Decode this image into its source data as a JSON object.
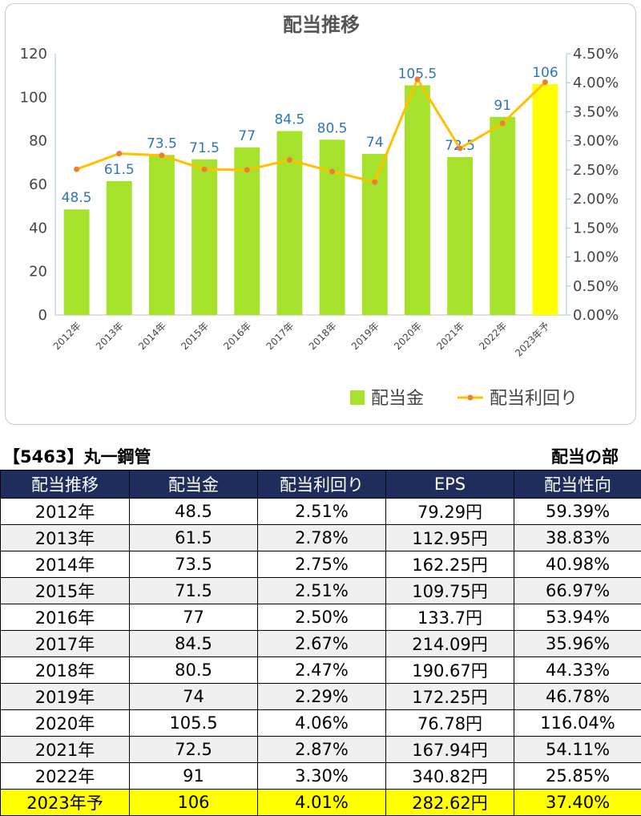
{
  "chart_data": {
    "type": "bar+line",
    "title": "配当推移",
    "categories": [
      "2012年",
      "2013年",
      "2014年",
      "2015年",
      "2016年",
      "2017年",
      "2018年",
      "2019年",
      "2020年",
      "2021年",
      "2022年",
      "2023年予"
    ],
    "series": [
      {
        "name": "配当金",
        "type": "bar",
        "axis": "left",
        "values": [
          48.5,
          61.5,
          73.5,
          71.5,
          77,
          84.5,
          80.5,
          74,
          105.5,
          72.5,
          91,
          106
        ],
        "labels": [
          "48.5",
          "61.5",
          "73.5",
          "71.5",
          "77",
          "84.5",
          "80.5",
          "74",
          "105.5",
          "72.5",
          "91",
          "106"
        ],
        "color": "#a6e22b",
        "highlight_color": "#ffff00"
      },
      {
        "name": "配当利回り",
        "type": "line",
        "axis": "right",
        "values": [
          2.51,
          2.78,
          2.75,
          2.51,
          2.5,
          2.67,
          2.47,
          2.29,
          4.06,
          2.87,
          3.3,
          4.01
        ],
        "color": "#ffc000",
        "marker_color": "#ed7d31"
      }
    ],
    "y_left": {
      "min": 0,
      "max": 120,
      "ticks": [
        "0",
        "20",
        "40",
        "60",
        "80",
        "100",
        "120"
      ]
    },
    "y_right": {
      "min": 0,
      "max": 4.5,
      "ticks": [
        "0.00%",
        "0.50%",
        "1.00%",
        "1.50%",
        "2.00%",
        "2.50%",
        "3.00%",
        "3.50%",
        "4.00%",
        "4.50%"
      ]
    },
    "legend_position": "bottom-right",
    "grid": false
  },
  "table": {
    "stock_label": "【5463】丸一鋼管",
    "section_label": "配当の部",
    "columns": [
      "配当推移",
      "配当金",
      "配当利回り",
      "EPS",
      "配当性向"
    ],
    "rows": [
      [
        "2012年",
        "48.5",
        "2.51%",
        "79.29円",
        "59.39%"
      ],
      [
        "2013年",
        "61.5",
        "2.78%",
        "112.95円",
        "38.83%"
      ],
      [
        "2014年",
        "73.5",
        "2.75%",
        "162.25円",
        "40.98%"
      ],
      [
        "2015年",
        "71.5",
        "2.51%",
        "109.75円",
        "66.97%"
      ],
      [
        "2016年",
        "77",
        "2.50%",
        "133.7円",
        "53.94%"
      ],
      [
        "2017年",
        "84.5",
        "2.67%",
        "214.09円",
        "35.96%"
      ],
      [
        "2018年",
        "80.5",
        "2.47%",
        "190.67円",
        "44.33%"
      ],
      [
        "2019年",
        "74",
        "2.29%",
        "172.25円",
        "46.78%"
      ],
      [
        "2020年",
        "105.5",
        "4.06%",
        "76.78円",
        "116.04%"
      ],
      [
        "2021年",
        "72.5",
        "2.87%",
        "167.94円",
        "54.11%"
      ],
      [
        "2022年",
        "91",
        "3.30%",
        "340.82円",
        "25.85%"
      ],
      [
        "2023年予",
        "106",
        "4.01%",
        "282.62円",
        "37.40%"
      ]
    ]
  }
}
